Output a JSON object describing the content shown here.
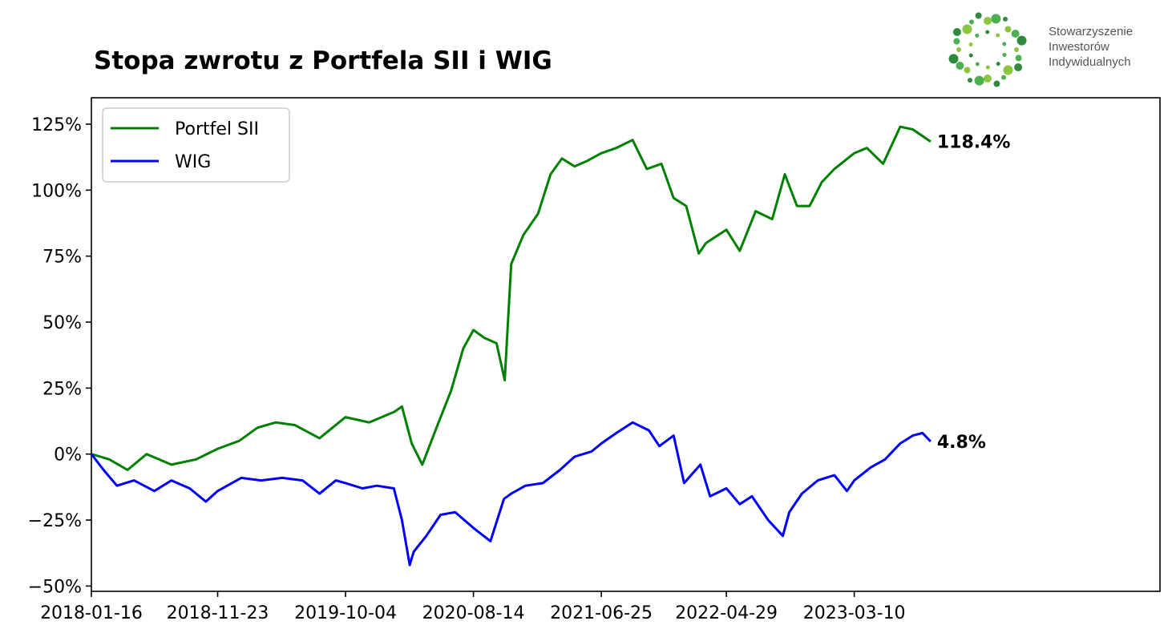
{
  "chart_data": {
    "type": "line",
    "title": "Stopa zwrotu z Portfela SII i WIG",
    "xlabel": "",
    "ylabel": "",
    "x_ticks": [
      "2018-01-16",
      "2018-11-23",
      "2019-10-04",
      "2020-08-14",
      "2021-06-25",
      "2022-04-29",
      "2023-03-10"
    ],
    "y_ticks": [
      "125%",
      "100%",
      "75%",
      "50%",
      "25%",
      "0%",
      "−25%",
      "−50%"
    ],
    "y_tick_values": [
      125,
      100,
      75,
      50,
      25,
      0,
      -25,
      -50
    ],
    "ylim": [
      -52,
      135
    ],
    "xlim": [
      "2018-01-16",
      "2025-04-01"
    ],
    "grid": false,
    "legend_position": "top-left",
    "series": [
      {
        "name": "Portfel SII",
        "color": "#008000",
        "end_label": "118.4%",
        "x": [
          "2018-01-16",
          "2018-03-01",
          "2018-04-15",
          "2018-06-01",
          "2018-08-01",
          "2018-10-01",
          "2018-11-23",
          "2019-01-15",
          "2019-03-01",
          "2019-04-15",
          "2019-06-01",
          "2019-08-01",
          "2019-10-04",
          "2019-12-01",
          "2020-02-01",
          "2020-02-20",
          "2020-03-15",
          "2020-04-10",
          "2020-05-15",
          "2020-06-20",
          "2020-07-20",
          "2020-08-14",
          "2020-09-10",
          "2020-10-10",
          "2020-10-30",
          "2020-11-15",
          "2020-12-15",
          "2021-01-20",
          "2021-02-20",
          "2021-03-20",
          "2021-04-20",
          "2021-05-20",
          "2021-06-25",
          "2021-08-01",
          "2021-09-10",
          "2021-10-15",
          "2021-11-20",
          "2021-12-20",
          "2022-01-20",
          "2022-02-20",
          "2022-03-10",
          "2022-04-29",
          "2022-06-01",
          "2022-07-10",
          "2022-08-20",
          "2022-09-20",
          "2022-10-20",
          "2022-11-20",
          "2022-12-20",
          "2023-01-20",
          "2023-03-10",
          "2023-04-10",
          "2023-05-20",
          "2023-07-01",
          "2023-08-01",
          "2023-09-14"
        ],
        "values": [
          0,
          -2,
          -6,
          0,
          -4,
          -2,
          2,
          5,
          10,
          12,
          11,
          6,
          14,
          12,
          16,
          18,
          4,
          -4,
          10,
          24,
          40,
          47,
          44,
          42,
          28,
          72,
          83,
          91,
          106,
          112,
          109,
          111,
          114,
          116,
          119,
          108,
          110,
          97,
          94,
          76,
          80,
          85,
          77,
          92,
          89,
          106,
          94,
          94,
          103,
          108,
          114,
          116,
          110,
          124,
          123,
          118.4
        ]
      },
      {
        "name": "WIG",
        "color": "#0000ff",
        "end_label": "4.8%",
        "x": [
          "2018-01-16",
          "2018-02-15",
          "2018-03-20",
          "2018-05-01",
          "2018-06-20",
          "2018-08-01",
          "2018-09-15",
          "2018-10-25",
          "2018-11-23",
          "2019-01-20",
          "2019-03-10",
          "2019-05-01",
          "2019-06-20",
          "2019-08-01",
          "2019-09-10",
          "2019-10-04",
          "2019-11-15",
          "2019-12-20",
          "2020-01-31",
          "2020-02-20",
          "2020-03-10",
          "2020-03-20",
          "2020-04-20",
          "2020-05-25",
          "2020-06-30",
          "2020-08-14",
          "2020-09-25",
          "2020-10-28",
          "2020-11-15",
          "2020-12-20",
          "2021-02-01",
          "2021-03-15",
          "2021-04-20",
          "2021-06-01",
          "2021-06-25",
          "2021-08-01",
          "2021-09-10",
          "2021-10-20",
          "2021-11-15",
          "2021-12-20",
          "2022-01-15",
          "2022-02-24",
          "2022-03-20",
          "2022-04-29",
          "2022-06-01",
          "2022-07-01",
          "2022-08-10",
          "2022-09-15",
          "2022-10-01",
          "2022-11-01",
          "2022-12-10",
          "2023-01-20",
          "2023-02-20",
          "2023-03-10",
          "2023-04-20",
          "2023-05-25",
          "2023-07-01",
          "2023-08-01",
          "2023-08-25",
          "2023-09-14"
        ],
        "values": [
          0,
          -6,
          -12,
          -10,
          -14,
          -10,
          -13,
          -18,
          -14,
          -9,
          -10,
          -9,
          -10,
          -15,
          -10,
          -11,
          -13,
          -12,
          -13,
          -25,
          -42,
          -37,
          -31,
          -23,
          -22,
          -28,
          -33,
          -17,
          -15,
          -12,
          -11,
          -6,
          -1,
          1,
          4,
          8,
          12,
          9,
          3,
          7,
          -11,
          -4,
          -16,
          -13,
          -19,
          -16,
          -25,
          -31,
          -22,
          -15,
          -10,
          -8,
          -14,
          -10,
          -5,
          -2,
          4,
          7,
          8,
          4.8
        ]
      }
    ]
  },
  "logo": {
    "line1": "Stowarzyszenie",
    "line2": "Inwestorów",
    "line3": "Indywidualnych",
    "colors": [
      "#8cc63f",
      "#4caf50",
      "#2e8b3d"
    ]
  }
}
